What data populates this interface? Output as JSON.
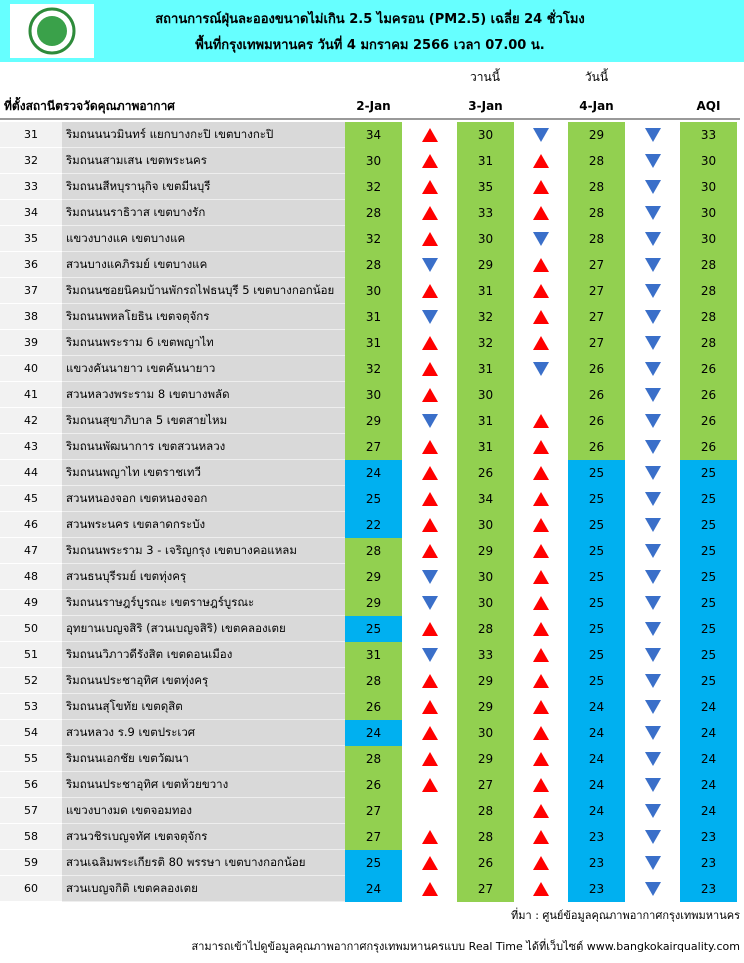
{
  "header": {
    "title_line1": "สถานการณ์ฝุ่นละอองขนาดไม่เกิน 2.5 ไมครอน (PM2.5) เฉลี่ย 24 ชั่วโมง",
    "title_line2": "พื้นที่กรุงเทพมหานคร วันที่ 4 มกราคม 2566 เวลา 07.00 น."
  },
  "table": {
    "day_labels": [
      "วานนี้",
      "วันนี้"
    ],
    "columns": [
      "ที่ตั้งสถานีตรวจวัดคุณภาพอากาศ",
      "2-Jan",
      "3-Jan",
      "4-Jan",
      "AQI"
    ],
    "color_scale": [
      {
        "max": 25,
        "color": "#00b0f0"
      },
      {
        "max": 1000,
        "color": "#92d050"
      }
    ],
    "trend_colors": {
      "up": "#ff0000",
      "down": "#3a6fc9"
    },
    "rows": [
      {
        "no": "31",
        "station": "ริมถนนนวมินทร์ แยกบางกะปิ เขตบางกะปิ",
        "values": [
          34,
          30,
          29,
          33
        ],
        "trends": [
          "up",
          "down",
          "down"
        ]
      },
      {
        "no": "32",
        "station": "ริมถนนสามเสน เขตพระนคร",
        "values": [
          30,
          31,
          28,
          30
        ],
        "trends": [
          "up",
          "up",
          "down"
        ]
      },
      {
        "no": "33",
        "station": "ริมถนนสีหบุรานุกิจ เขตมีนบุรี",
        "values": [
          32,
          35,
          28,
          30
        ],
        "trends": [
          "up",
          "up",
          "down"
        ]
      },
      {
        "no": "34",
        "station": "ริมถนนนราธิวาส เขตบางรัก",
        "values": [
          28,
          33,
          28,
          30
        ],
        "trends": [
          "up",
          "up",
          "down"
        ]
      },
      {
        "no": "35",
        "station": "แขวงบางแค เขตบางแค",
        "values": [
          32,
          30,
          28,
          30
        ],
        "trends": [
          "up",
          "down",
          "down"
        ]
      },
      {
        "no": "36",
        "station": "สวนบางแคภิรมย์ เขตบางแค",
        "values": [
          28,
          29,
          27,
          28
        ],
        "trends": [
          "down",
          "up",
          "down"
        ]
      },
      {
        "no": "37",
        "station": "ริมถนนซอยนิคมบ้านพักรถไฟธนบุรี 5 เขตบางกอกน้อย",
        "values": [
          30,
          31,
          27,
          28
        ],
        "trends": [
          "up",
          "up",
          "down"
        ]
      },
      {
        "no": "38",
        "station": "ริมถนนพหลโยธิน เขตจตุจักร",
        "values": [
          31,
          32,
          27,
          28
        ],
        "trends": [
          "down",
          "up",
          "down"
        ]
      },
      {
        "no": "39",
        "station": "ริมถนนพระราม 6 เขตพญาไท",
        "values": [
          31,
          32,
          27,
          28
        ],
        "trends": [
          "up",
          "up",
          "down"
        ]
      },
      {
        "no": "40",
        "station": "แขวงคันนายาว เขตคันนายาว",
        "values": [
          32,
          31,
          26,
          26
        ],
        "trends": [
          "up",
          "down",
          "down"
        ]
      },
      {
        "no": "41",
        "station": "สวนหลวงพระราม 8 เขตบางพลัด",
        "values": [
          30,
          30,
          26,
          26
        ],
        "trends": [
          "up",
          null,
          "down"
        ]
      },
      {
        "no": "42",
        "station": "ริมถนนสุขาภิบาล 5 เขตสายไหม",
        "values": [
          29,
          31,
          26,
          26
        ],
        "trends": [
          "down",
          "up",
          "down"
        ]
      },
      {
        "no": "43",
        "station": "ริมถนนพัฒนาการ เขตสวนหลวง",
        "values": [
          27,
          31,
          26,
          26
        ],
        "trends": [
          "up",
          "up",
          "down"
        ]
      },
      {
        "no": "44",
        "station": "ริมถนนพญาไท เขตราชเทวี",
        "values": [
          24,
          26,
          25,
          25
        ],
        "trends": [
          "up",
          "up",
          "down"
        ]
      },
      {
        "no": "45",
        "station": "สวนหนองจอก เขตหนองจอก",
        "values": [
          25,
          34,
          25,
          25
        ],
        "trends": [
          "up",
          "up",
          "down"
        ]
      },
      {
        "no": "46",
        "station": "สวนพระนคร เขตลาดกระบัง",
        "values": [
          22,
          30,
          25,
          25
        ],
        "trends": [
          "up",
          "up",
          "down"
        ]
      },
      {
        "no": "47",
        "station": "ริมถนนพระราม 3 - เจริญกรุง เขตบางคอแหลม",
        "values": [
          28,
          29,
          25,
          25
        ],
        "trends": [
          "up",
          "up",
          "down"
        ]
      },
      {
        "no": "48",
        "station": "สวนธนบุรีรมย์ เขตทุ่งครุ",
        "values": [
          29,
          30,
          25,
          25
        ],
        "trends": [
          "down",
          "up",
          "down"
        ]
      },
      {
        "no": "49",
        "station": "ริมถนนราษฎร์บูรณะ เขตราษฎร์บูรณะ",
        "values": [
          29,
          30,
          25,
          25
        ],
        "trends": [
          "down",
          "up",
          "down"
        ]
      },
      {
        "no": "50",
        "station": "อุทยานเบญจสิริ (สวนเบญจสิริ) เขตคลองเตย",
        "values": [
          25,
          28,
          25,
          25
        ],
        "trends": [
          "up",
          "up",
          "down"
        ]
      },
      {
        "no": "51",
        "station": "ริมถนนวิภาวดีรังสิต เขตดอนเมือง",
        "values": [
          31,
          33,
          25,
          25
        ],
        "trends": [
          "down",
          "up",
          "down"
        ]
      },
      {
        "no": "52",
        "station": "ริมถนนประชาอุทิศ เขตทุ่งครุ",
        "values": [
          28,
          29,
          25,
          25
        ],
        "trends": [
          "up",
          "up",
          "down"
        ]
      },
      {
        "no": "53",
        "station": "ริมถนนสุโขทัย เขตดุสิต",
        "values": [
          26,
          29,
          24,
          24
        ],
        "trends": [
          "up",
          "up",
          "down"
        ]
      },
      {
        "no": "54",
        "station": "สวนหลวง ร.9 เขตประเวศ",
        "values": [
          24,
          30,
          24,
          24
        ],
        "trends": [
          "up",
          "up",
          "down"
        ]
      },
      {
        "no": "55",
        "station": "ริมถนนเอกชัย เขตวัฒนา",
        "values": [
          28,
          29,
          24,
          24
        ],
        "trends": [
          "up",
          "up",
          "down"
        ]
      },
      {
        "no": "56",
        "station": "ริมถนนประชาอุทิศ เขตห้วยขวาง",
        "values": [
          26,
          27,
          24,
          24
        ],
        "trends": [
          "up",
          "up",
          "down"
        ]
      },
      {
        "no": "57",
        "station": "แขวงบางมด เขตจอมทอง",
        "values": [
          27,
          28,
          24,
          24
        ],
        "trends": [
          null,
          "up",
          "down"
        ]
      },
      {
        "no": "58",
        "station": "สวนวชิรเบญจทัศ เขตจตุจักร",
        "values": [
          27,
          28,
          23,
          23
        ],
        "trends": [
          "up",
          "up",
          "down"
        ]
      },
      {
        "no": "59",
        "station": "สวนเฉลิมพระเกียรติ 80 พรรษา เขตบางกอกน้อย",
        "values": [
          25,
          26,
          23,
          23
        ],
        "trends": [
          "up",
          "up",
          "down"
        ]
      },
      {
        "no": "60",
        "station": "สวนเบญจกิติ เขตคลองเตย",
        "values": [
          24,
          27,
          23,
          23
        ],
        "trends": [
          "up",
          "up",
          "down"
        ]
      }
    ]
  },
  "footer": {
    "source": "ที่มา : ศูนย์ข้อมูลคุณภาพอากาศกรุงเทพมหานคร",
    "note": "สามารถเข้าไปดูข้อมูลคุณภาพอากาศกรุงเทพมหานครแบบ Real Time ได้ที่เว็บไซต์ www.bangkokairquality.com"
  }
}
